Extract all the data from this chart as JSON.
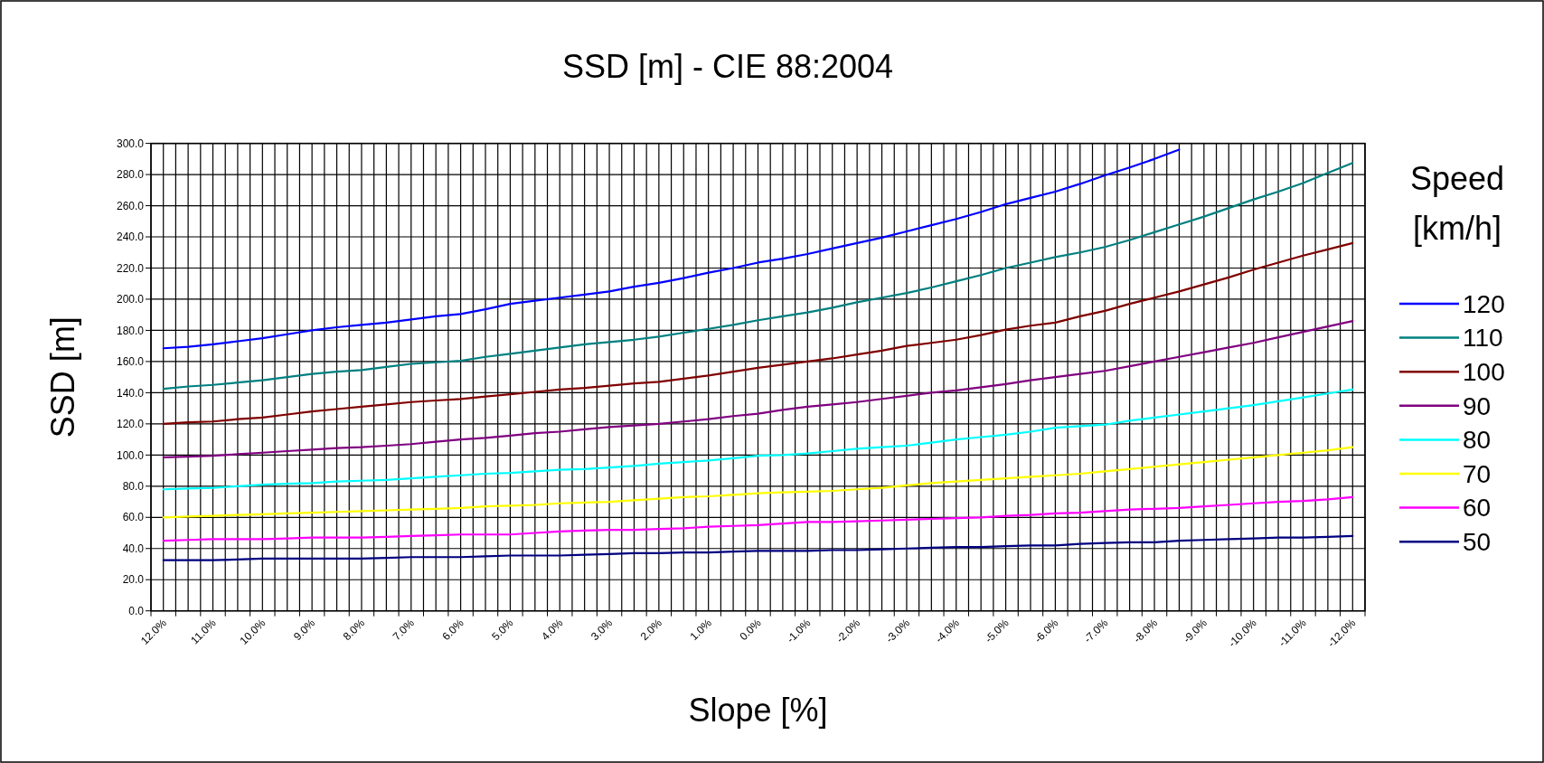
{
  "chart_data": {
    "type": "line",
    "title": "SSD [m] - CIE 88:2004",
    "xlabel": "Slope [%]",
    "ylabel": "SSD [m]",
    "legend_title": "Speed [km/h]",
    "legend": "right",
    "grid": true,
    "categories": [
      "12.0%",
      null,
      "11.0%",
      null,
      "10.0%",
      null,
      "9.0%",
      null,
      "8.0%",
      null,
      "7.0%",
      null,
      "6.0%",
      null,
      "5.0%",
      null,
      "4.0%",
      null,
      "3.0%",
      null,
      "2.0%",
      null,
      "1.0%",
      null,
      "0.0%",
      null,
      "-1.0%",
      null,
      "-2.0%",
      null,
      "-3.0%",
      null,
      "-4.0%",
      null,
      "-5.0%",
      null,
      "-6.0%",
      null,
      "-7.0%",
      null,
      "-8.0%",
      null,
      "-9.0%",
      null,
      "-10.0%",
      null,
      "-11.0%",
      null,
      "-12.0%"
    ],
    "ylim": [
      0,
      300
    ],
    "yticks": [
      {
        "value": 0,
        "label": "0.0"
      },
      {
        "value": 20,
        "label": "20.0"
      },
      {
        "value": 40,
        "label": "40.0"
      },
      {
        "value": 60,
        "label": "60.0"
      },
      {
        "value": 80,
        "label": "80.0"
      },
      {
        "value": 100,
        "label": "100.0"
      },
      {
        "value": 120,
        "label": "120.0"
      },
      {
        "value": 140,
        "label": "140.0"
      },
      {
        "value": 160,
        "label": "160.0"
      },
      {
        "value": 180,
        "label": "180.0"
      },
      {
        "value": 200,
        "label": "200.0"
      },
      {
        "value": 220,
        "label": "220.0"
      },
      {
        "value": 240,
        "label": "240.0"
      },
      {
        "value": 260,
        "label": "260.0"
      },
      {
        "value": 280,
        "label": "280.0"
      },
      {
        "value": 300,
        "label": "300.0"
      }
    ],
    "series": [
      {
        "name": "120",
        "color": "#0000ff",
        "values": [
          168.5,
          169.5,
          171,
          173,
          175,
          177.5,
          180,
          182,
          183.5,
          185,
          187,
          189,
          190.5,
          193.5,
          197,
          199,
          201,
          203,
          205,
          208,
          210.5,
          213.5,
          217,
          220,
          223.5,
          226,
          229,
          232.5,
          236,
          239.5,
          243.5,
          247.5,
          251.5,
          256,
          261,
          265,
          269,
          274,
          279.5,
          284.5,
          290,
          296,
          null,
          null,
          null,
          null,
          null,
          null,
          null
        ]
      },
      {
        "name": "110",
        "color": "#008080",
        "values": [
          142.5,
          144,
          145,
          146.5,
          148,
          150,
          152,
          153.5,
          154.5,
          156.5,
          158.5,
          159.5,
          160.5,
          163,
          165,
          167,
          169,
          171,
          172.5,
          174,
          176,
          178.5,
          181,
          183.5,
          186.5,
          189,
          191.5,
          194.5,
          198,
          201,
          204,
          207.5,
          211.5,
          215.5,
          220,
          223.5,
          227,
          230,
          233.5,
          238,
          243,
          248,
          253,
          258.5,
          264,
          269,
          274.5,
          281,
          287.5
        ]
      },
      {
        "name": "100",
        "color": "#800000",
        "values": [
          120,
          121,
          121.5,
          123,
          124,
          126,
          128,
          129.5,
          131,
          132.5,
          134,
          135,
          136,
          137.5,
          139,
          140.5,
          142,
          143,
          144.5,
          146,
          147,
          149,
          151,
          153.5,
          156,
          158,
          160,
          162,
          164.5,
          167,
          170,
          172,
          174,
          177,
          180.5,
          183,
          185,
          189,
          192.5,
          197,
          201,
          205,
          209.5,
          214,
          219,
          223.5,
          228,
          232,
          236
        ]
      },
      {
        "name": "90",
        "color": "#800080",
        "values": [
          98.5,
          99,
          99.5,
          100.5,
          101.5,
          102.5,
          103.5,
          104.5,
          105,
          106,
          107,
          108.5,
          110,
          111,
          112.5,
          114,
          115,
          116.5,
          118,
          119,
          120,
          121.5,
          123,
          125,
          126.5,
          129,
          131,
          132.5,
          134,
          136,
          138,
          140,
          141.5,
          143.5,
          145.5,
          148,
          150,
          152,
          154,
          157,
          160,
          163,
          166,
          169,
          172,
          175.5,
          179,
          182.5,
          186
        ]
      },
      {
        "name": "80",
        "color": "#00ffff",
        "values": [
          78,
          78.5,
          79,
          80,
          81,
          81.5,
          82,
          83,
          83.5,
          84,
          85,
          86,
          87,
          88,
          88.5,
          89.5,
          90.5,
          91,
          92,
          93,
          94.5,
          95.5,
          96.5,
          98,
          99.5,
          100,
          101,
          102.5,
          104,
          105,
          106,
          108,
          110,
          111.5,
          113,
          115,
          117.5,
          118.5,
          119.5,
          122,
          124,
          126,
          128,
          130,
          132,
          134.5,
          137,
          139.5,
          142
        ]
      },
      {
        "name": "70",
        "color": "#ffff00",
        "values": [
          60,
          60.5,
          61,
          61.5,
          62,
          62.5,
          63,
          63.5,
          64,
          64.5,
          65,
          65.5,
          66,
          67,
          67.5,
          68,
          69,
          69.5,
          70,
          71,
          72,
          73,
          73.5,
          74.5,
          75.5,
          76,
          76.5,
          77,
          78,
          79,
          80.5,
          82,
          83,
          84,
          85,
          86,
          87,
          88,
          89.5,
          91,
          92.5,
          94,
          95.5,
          97,
          98.5,
          100,
          101.5,
          103,
          105
        ]
      },
      {
        "name": "60",
        "color": "#ff00ff",
        "values": [
          45,
          45.5,
          46,
          46,
          46,
          46.5,
          47,
          47,
          47,
          47.5,
          48,
          48.5,
          49,
          49,
          49,
          50,
          51,
          51.5,
          52,
          52,
          52.5,
          53,
          54,
          54.5,
          55,
          56,
          57,
          57,
          57.5,
          58,
          58.5,
          59,
          59.5,
          60,
          61,
          61.5,
          62.5,
          63,
          64,
          65,
          65.5,
          66,
          67,
          68,
          69,
          70,
          70.5,
          71.5,
          73
        ]
      },
      {
        "name": "50",
        "color": "#000080",
        "values": [
          32.5,
          32.5,
          32.5,
          33,
          33.5,
          33.5,
          33.5,
          33.5,
          33.5,
          34,
          34.5,
          34.5,
          34.5,
          35,
          35.5,
          35.5,
          35.5,
          36,
          36.5,
          37,
          37,
          37.5,
          37.5,
          38,
          38.5,
          38.5,
          38.5,
          39,
          39,
          39.5,
          40,
          40.5,
          41,
          41,
          41.5,
          42,
          42,
          43,
          43.5,
          44,
          44,
          45,
          45.5,
          46,
          46.5,
          47,
          47,
          47.5,
          48
        ]
      }
    ]
  }
}
